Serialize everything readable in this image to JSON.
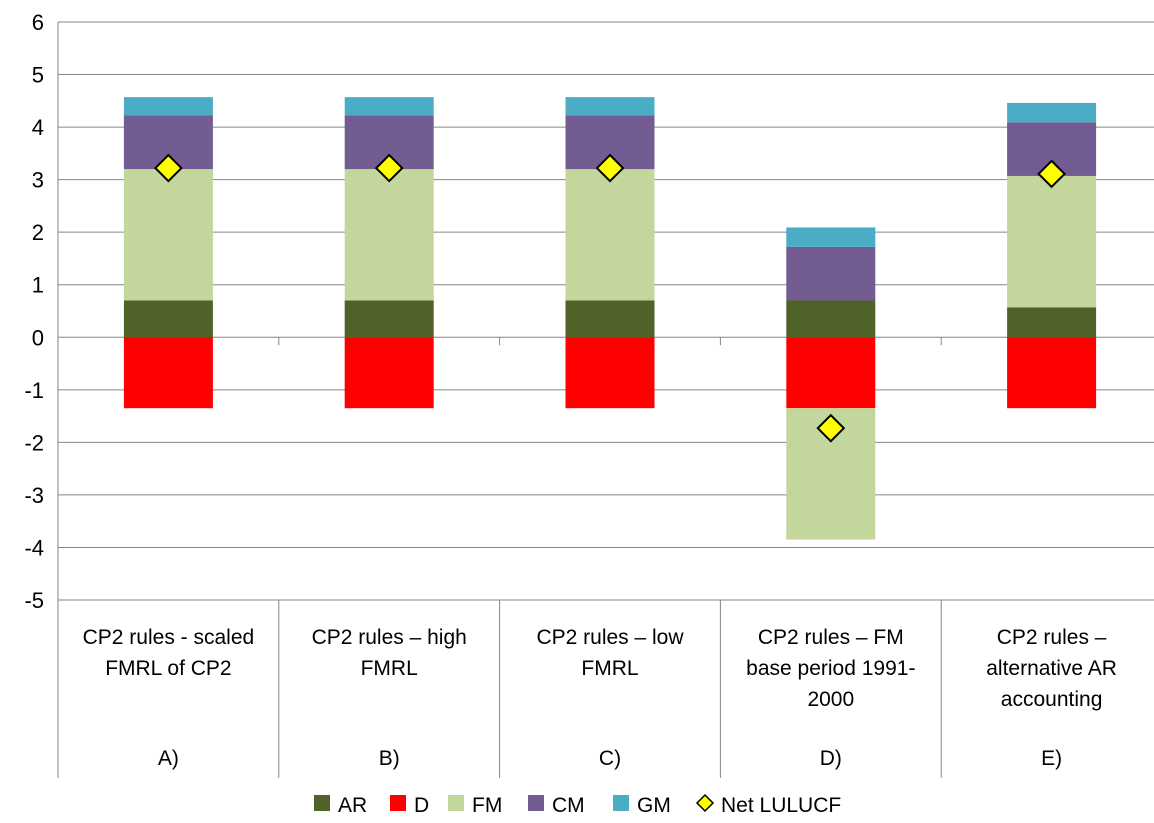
{
  "chart_data": {
    "type": "bar",
    "stacked": true,
    "title": "",
    "xlabel": "",
    "ylabel": "",
    "ylim": [
      -5,
      6
    ],
    "yticks": [
      "6",
      "5",
      "4",
      "3",
      "2",
      "1",
      "0",
      "-1",
      "-2",
      "-3",
      "-4",
      "-5"
    ],
    "grid": true,
    "legend_position": "bottom",
    "categories": [
      {
        "text_lines": [
          "CP2 rules - scaled",
          "FMRL of CP2"
        ],
        "letter": "A)"
      },
      {
        "text_lines": [
          "CP2 rules – high",
          "FMRL"
        ],
        "letter": "B)"
      },
      {
        "text_lines": [
          "CP2 rules – low",
          "FMRL"
        ],
        "letter": "C)"
      },
      {
        "text_lines": [
          "CP2 rules – FM",
          "base period 1991-",
          "2000"
        ],
        "letter": "D)"
      },
      {
        "text_lines": [
          "CP2 rules –",
          "alternative AR",
          "accounting"
        ],
        "letter": "E)"
      }
    ],
    "series": [
      {
        "name": "AR",
        "color": "#4f6228",
        "values": [
          0.7,
          0.7,
          0.7,
          0.7,
          0.57
        ]
      },
      {
        "name": "D",
        "color": "#ff0000",
        "values": [
          -1.35,
          -1.35,
          -1.35,
          -1.35,
          -1.35
        ]
      },
      {
        "name": "FM",
        "color": "#c3d69b",
        "values": [
          2.5,
          2.5,
          2.5,
          -2.5,
          2.5
        ]
      },
      {
        "name": "CM",
        "color": "#725c91",
        "values": [
          1.02,
          1.02,
          1.02,
          1.02,
          1.02
        ]
      },
      {
        "name": "GM",
        "color": "#4bacc6",
        "values": [
          0.35,
          0.35,
          0.35,
          0.37,
          0.37
        ]
      }
    ],
    "net_series": {
      "name": "Net LULUCF",
      "color": "#ffff00",
      "values": [
        3.22,
        3.22,
        3.22,
        -1.73,
        3.11
      ]
    }
  }
}
